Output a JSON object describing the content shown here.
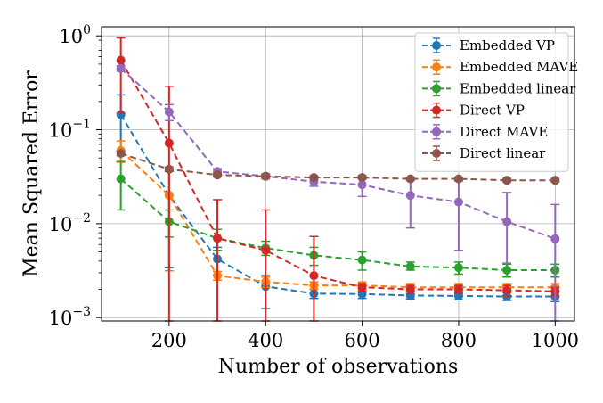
{
  "chart_data": {
    "type": "line",
    "title": "",
    "xlabel": "Number of observations",
    "ylabel": "Mean Squared Error",
    "yscale": "log",
    "xlim": [
      60,
      1040
    ],
    "ylim": [
      0.00092,
      1.25
    ],
    "grid": true,
    "legend_position": "top-right",
    "x_ticks": [
      200,
      400,
      600,
      800,
      1000
    ],
    "x_tick_labels": [
      "200",
      "400",
      "600",
      "800",
      "1000"
    ],
    "y_ticks": [
      0.001,
      0.01,
      0.1,
      1
    ],
    "y_tick_labels": [
      {
        "base": "10",
        "exp": "−3"
      },
      {
        "base": "10",
        "exp": "−2"
      },
      {
        "base": "10",
        "exp": "−1"
      },
      {
        "base": "10",
        "exp": "0"
      }
    ],
    "x": [
      100,
      200,
      300,
      400,
      500,
      600,
      700,
      800,
      900,
      1000
    ],
    "series": [
      {
        "name": "Embedded VP",
        "color": "#1f77b4",
        "values": [
          0.145,
          0.02,
          0.0042,
          0.00215,
          0.0018,
          0.00178,
          0.00172,
          0.0017,
          0.00168,
          0.00168
        ],
        "err_low": [
          0.06,
          0.0034,
          0.00285,
          0.00125,
          0.0016,
          0.0016,
          0.00158,
          0.00155,
          0.00152,
          0.00148
        ],
        "err_high": [
          0.235,
          0.0365,
          0.0056,
          0.0028,
          0.002,
          0.00198,
          0.00188,
          0.00185,
          0.00184,
          0.00188
        ]
      },
      {
        "name": "Embedded MAVE",
        "color": "#ff7f0e",
        "values": [
          0.06,
          0.02,
          0.0028,
          0.0024,
          0.0022,
          0.0022,
          0.0021,
          0.0021,
          0.0021,
          0.0021
        ],
        "err_low": [
          0.045,
          0.00315,
          0.0025,
          0.0021,
          0.002,
          0.002,
          0.00195,
          0.00195,
          0.00195,
          0.00195
        ],
        "err_high": [
          0.076,
          0.0365,
          0.0031,
          0.0027,
          0.0024,
          0.0024,
          0.0023,
          0.0023,
          0.0023,
          0.0023
        ]
      },
      {
        "name": "Embedded linear",
        "color": "#2ca02c",
        "values": [
          0.03,
          0.0105,
          0.007,
          0.0055,
          0.0046,
          0.0041,
          0.0035,
          0.0034,
          0.0032,
          0.0032
        ],
        "err_low": [
          0.014,
          0.0072,
          0.0052,
          0.0046,
          0.0036,
          0.0032,
          0.0032,
          0.0029,
          0.0027,
          0.0027
        ],
        "err_high": [
          0.046,
          0.014,
          0.0087,
          0.0065,
          0.0056,
          0.005,
          0.0039,
          0.0039,
          0.0037,
          0.0037
        ]
      },
      {
        "name": "Direct VP",
        "color": "#d62728",
        "values": [
          0.55,
          0.072,
          0.007,
          0.0052,
          0.0028,
          0.0021,
          0.002,
          0.002,
          0.00195,
          0.0019
        ],
        "err_low": [
          0.15,
          0.0009,
          0.0009,
          0.0009,
          0.0009,
          0.0019,
          0.0018,
          0.0018,
          0.0017,
          0.0017
        ],
        "err_high": [
          0.95,
          0.29,
          0.018,
          0.014,
          0.0073,
          0.0023,
          0.0022,
          0.0022,
          0.0022,
          0.0021
        ]
      },
      {
        "name": "Direct MAVE",
        "color": "#9467bd",
        "values": [
          0.45,
          0.155,
          0.036,
          0.032,
          0.028,
          0.026,
          0.02,
          0.017,
          0.0105,
          0.0069
        ],
        "err_low": [
          0.42,
          0.125,
          0.0335,
          0.03,
          0.025,
          0.0195,
          0.009,
          0.0052,
          0.0038,
          0.0009
        ],
        "err_high": [
          0.48,
          0.185,
          0.0385,
          0.034,
          0.031,
          0.0325,
          0.031,
          0.0285,
          0.0215,
          0.016
        ]
      },
      {
        "name": "Direct linear",
        "color": "#8c564b",
        "values": [
          0.056,
          0.038,
          0.033,
          0.032,
          0.031,
          0.031,
          0.03,
          0.03,
          0.029,
          0.029
        ],
        "err_low": [
          0.053,
          0.036,
          0.0315,
          0.0308,
          0.0298,
          0.0298,
          0.0288,
          0.0288,
          0.0278,
          0.0278
        ],
        "err_high": [
          0.059,
          0.04,
          0.0345,
          0.0332,
          0.0322,
          0.0322,
          0.0312,
          0.0312,
          0.0302,
          0.0302
        ]
      }
    ]
  }
}
